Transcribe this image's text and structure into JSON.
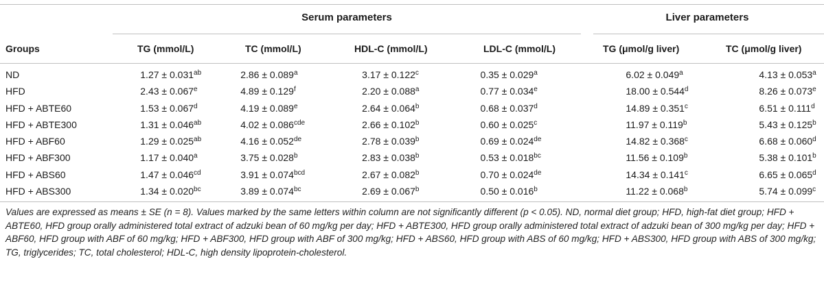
{
  "group_headers": {
    "serum": "Serum parameters",
    "liver": "Liver parameters"
  },
  "columns": [
    "Groups",
    "TG (mmol/L)",
    "TC (mmol/L)",
    "HDL-C (mmol/L)",
    "LDL-C (mmol/L)",
    "TG (μmol/g liver)",
    "TC (μmol/g liver)"
  ],
  "rows": [
    {
      "group": "ND",
      "cells": [
        {
          "v": "1.27 ± 0.031",
          "s": "ab"
        },
        {
          "v": "2.86 ± 0.089",
          "s": "a"
        },
        {
          "v": "3.17 ± 0.122",
          "s": "c"
        },
        {
          "v": "0.35 ± 0.029",
          "s": "a"
        },
        {
          "v": "6.02 ± 0.049",
          "s": "a"
        },
        {
          "v": "4.13 ± 0.053",
          "s": "a"
        }
      ]
    },
    {
      "group": "HFD",
      "cells": [
        {
          "v": "2.43 ± 0.067",
          "s": "e"
        },
        {
          "v": "4.89 ± 0.129",
          "s": "f"
        },
        {
          "v": "2.20 ± 0.088",
          "s": "a"
        },
        {
          "v": "0.77 ± 0.034",
          "s": "e"
        },
        {
          "v": "18.00 ± 0.544",
          "s": "d"
        },
        {
          "v": "8.26 ± 0.073",
          "s": "e"
        }
      ]
    },
    {
      "group": "HFD + ABTE60",
      "cells": [
        {
          "v": "1.53 ± 0.067",
          "s": "d"
        },
        {
          "v": "4.19 ± 0.089",
          "s": "e"
        },
        {
          "v": "2.64 ± 0.064",
          "s": "b"
        },
        {
          "v": "0.68 ± 0.037",
          "s": "d"
        },
        {
          "v": "14.89 ± 0.351",
          "s": "c"
        },
        {
          "v": "6.51 ± 0.111",
          "s": "d"
        }
      ]
    },
    {
      "group": "HFD + ABTE300",
      "cells": [
        {
          "v": "1.31 ± 0.046",
          "s": "ab"
        },
        {
          "v": "4.02 ± 0.086",
          "s": "cde"
        },
        {
          "v": "2.66 ± 0.102",
          "s": "b"
        },
        {
          "v": "0.60 ± 0.025",
          "s": "c"
        },
        {
          "v": "11.97 ± 0.119",
          "s": "b"
        },
        {
          "v": "5.43 ± 0.125",
          "s": "b"
        }
      ]
    },
    {
      "group": "HFD + ABF60",
      "cells": [
        {
          "v": "1.29 ± 0.025",
          "s": "ab"
        },
        {
          "v": "4.16 ± 0.052",
          "s": "de"
        },
        {
          "v": "2.78 ± 0.039",
          "s": "b"
        },
        {
          "v": "0.69 ± 0.024",
          "s": "de"
        },
        {
          "v": "14.82 ± 0.368",
          "s": "c"
        },
        {
          "v": "6.68 ± 0.060",
          "s": "d"
        }
      ]
    },
    {
      "group": "HFD + ABF300",
      "cells": [
        {
          "v": "1.17 ± 0.040",
          "s": "a"
        },
        {
          "v": "3.75 ± 0.028",
          "s": "b"
        },
        {
          "v": "2.83 ± 0.038",
          "s": "b"
        },
        {
          "v": "0.53 ± 0.018",
          "s": "bc"
        },
        {
          "v": "11.56 ± 0.109",
          "s": "b"
        },
        {
          "v": "5.38 ± 0.101",
          "s": "b"
        }
      ]
    },
    {
      "group": "HFD + ABS60",
      "cells": [
        {
          "v": "1.47 ± 0.046",
          "s": "cd"
        },
        {
          "v": "3.91 ± 0.074",
          "s": "bcd"
        },
        {
          "v": "2.67 ± 0.082",
          "s": "b"
        },
        {
          "v": "0.70 ± 0.024",
          "s": "de"
        },
        {
          "v": "14.34 ± 0.141",
          "s": "c"
        },
        {
          "v": "6.65 ± 0.065",
          "s": "d"
        }
      ]
    },
    {
      "group": "HFD + ABS300",
      "cells": [
        {
          "v": "1.34 ± 0.020",
          "s": "bc"
        },
        {
          "v": "3.89 ± 0.074",
          "s": "bc"
        },
        {
          "v": "2.69 ± 0.067",
          "s": "b"
        },
        {
          "v": "0.50 ± 0.016",
          "s": "b"
        },
        {
          "v": "11.22 ± 0.068",
          "s": "b"
        },
        {
          "v": "5.74 ± 0.099",
          "s": "c"
        }
      ]
    }
  ],
  "footnote": "Values are expressed as means ± SE (n = 8). Values marked by the same letters within column are not significantly different (p < 0.05). ND, normal diet group; HFD, high-fat diet group; HFD + ABTE60, HFD group orally administered total extract of adzuki bean of 60 mg/kg per day; HFD + ABTE300, HFD group orally administered total extract of adzuki bean of 300 mg/kg per day; HFD + ABF60, HFD group with ABF of 60 mg/kg; HFD + ABF300, HFD group with ABF of 300 mg/kg; HFD + ABS60, HFD group with ABS of 60 mg/kg; HFD + ABS300, HFD group with ABS of 300 mg/kg; TG, triglycerides; TC, total cholesterol; HDL-C, high density lipoprotein-cholesterol."
}
